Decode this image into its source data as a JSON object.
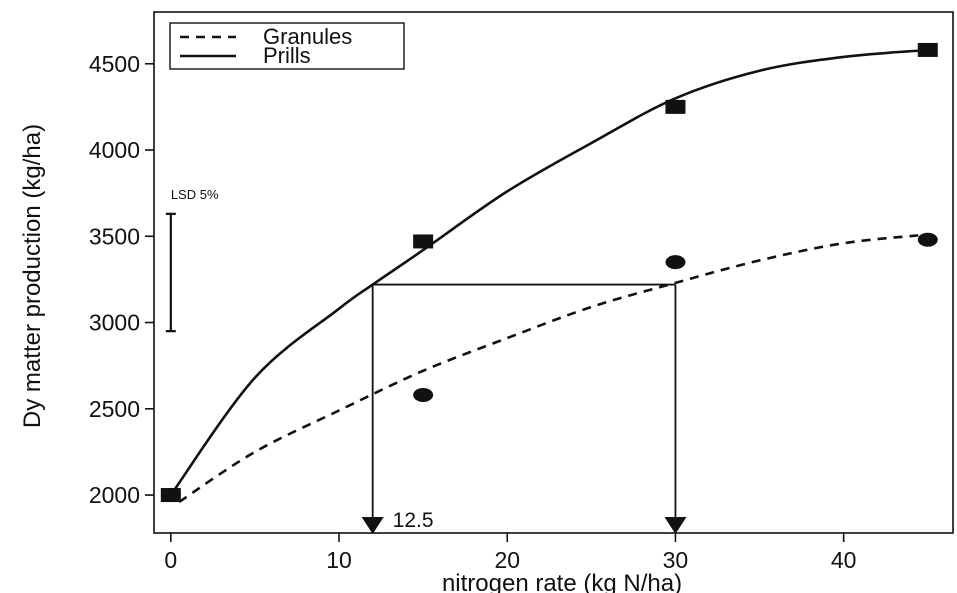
{
  "chart_data": {
    "type": "line",
    "title": "",
    "xlabel": "nitrogen rate (kg N/ha)",
    "ylabel": "Dy matter production (kg/ha)",
    "xlim": [
      -1,
      46.5
    ],
    "ylim": [
      1780,
      4800
    ],
    "xticks": [
      0,
      10,
      20,
      30,
      40
    ],
    "yticks": [
      2000,
      2500,
      3000,
      3500,
      4000,
      4500
    ],
    "grid": false,
    "legend_position": "top-left",
    "series": [
      {
        "name": "Prills",
        "line_style": "solid",
        "marker": "square",
        "color": "#111111",
        "points": {
          "x": [
            0,
            15,
            30,
            45
          ],
          "y": [
            2000,
            3470,
            4250,
            4580
          ]
        },
        "fitted_curve": {
          "x": [
            0,
            5,
            10,
            12,
            15,
            20,
            25,
            30,
            35,
            40,
            45
          ],
          "y": [
            2000,
            2680,
            3080,
            3220,
            3420,
            3760,
            4040,
            4300,
            4460,
            4540,
            4580
          ]
        }
      },
      {
        "name": "Granules",
        "line_style": "dashed",
        "marker": "circle",
        "color": "#111111",
        "points": {
          "x": [
            0,
            15,
            30,
            45
          ],
          "y": [
            2000,
            2580,
            3350,
            3480
          ]
        },
        "fitted_curve": {
          "x": [
            0.5,
            5,
            10,
            15,
            20,
            25,
            30,
            35,
            40,
            45
          ],
          "y": [
            1960,
            2250,
            2490,
            2720,
            2910,
            3090,
            3230,
            3360,
            3460,
            3510
          ]
        }
      }
    ],
    "lsd_bar": {
      "label": "LSD 5%",
      "x": 0,
      "y_low": 2950,
      "y_high": 3630
    },
    "reference_lines": {
      "y_level": 3220,
      "x_start": 12,
      "x_end": 30,
      "arrows_down_at": [
        12,
        30
      ]
    },
    "annotations": [
      {
        "text": "12.5",
        "x": 12,
        "y": 1780
      }
    ]
  }
}
